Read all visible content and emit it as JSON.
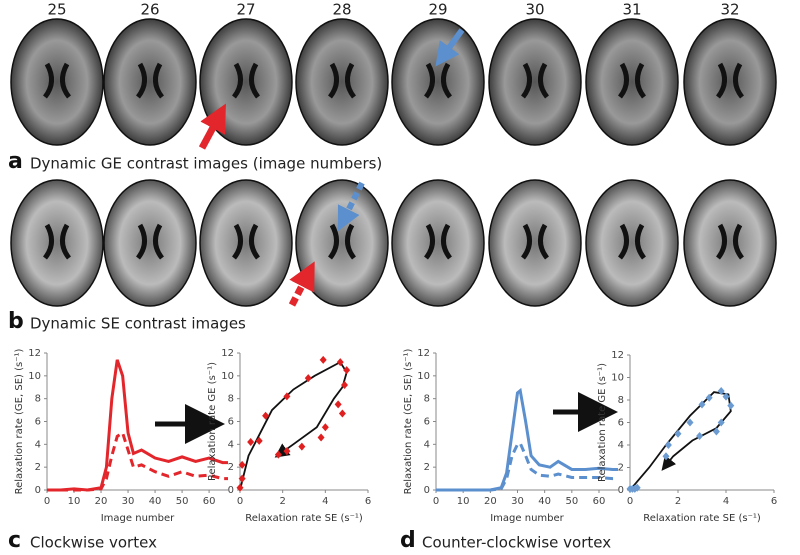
{
  "image_numbers": [
    "25",
    "26",
    "27",
    "28",
    "29",
    "30",
    "31",
    "32"
  ],
  "panels": [
    {
      "letter": "a",
      "caption": "Dynamic GE contrast images (image numbers)"
    },
    {
      "letter": "b",
      "caption": "Dynamic SE contrast images"
    },
    {
      "letter": "c",
      "caption": "Clockwise vortex"
    },
    {
      "letter": "d",
      "caption": "Counter-clockwise vortex"
    }
  ],
  "chart_data": [
    {
      "type": "line",
      "xlabel": "Image number",
      "ylabel": "Relaxation rate (GE, SE) (s⁻¹)",
      "xlim": [
        0,
        67
      ],
      "xticks": [
        0,
        10,
        20,
        30,
        40,
        50,
        60
      ],
      "ylim": [
        0,
        12
      ],
      "yticks": [
        0,
        2,
        4,
        6,
        8,
        10,
        12
      ],
      "x": [
        0,
        5,
        10,
        15,
        20,
        22,
        24,
        26,
        28,
        30,
        32,
        35,
        40,
        45,
        50,
        55,
        60,
        65,
        67
      ],
      "series": [
        {
          "color": "#e3262b",
          "dash": false,
          "values": [
            0,
            0,
            0.1,
            0,
            0.2,
            2,
            8,
            11.4,
            10,
            5,
            3.2,
            3.5,
            2.8,
            2.5,
            2.9,
            2.5,
            2.8,
            2.4,
            2.4
          ]
        },
        {
          "color": "#e3262b",
          "dash": true,
          "values": [
            0,
            0,
            0,
            0,
            0.1,
            1,
            3,
            4.7,
            5,
            3.5,
            2,
            2.2,
            1.6,
            1.2,
            1.6,
            1.2,
            1.3,
            1,
            1
          ]
        }
      ]
    },
    {
      "type": "scatter",
      "xlabel": "Relaxation rate SE (s⁻¹)",
      "ylabel": "Relaxation rate GE (s⁻¹)",
      "xlim": [
        0,
        6
      ],
      "xticks": [
        0,
        2,
        4,
        6
      ],
      "ylim": [
        0,
        12
      ],
      "yticks": [
        0,
        2,
        4,
        6,
        8,
        10,
        12
      ],
      "color": "#e02020",
      "x": [
        0,
        0.1,
        0.1,
        0.5,
        0.9,
        1.2,
        2.2,
        3.2,
        3.9,
        4.7,
        5,
        4.9,
        4.6,
        4.8,
        4,
        3.8,
        2.9,
        2.2,
        1.8
      ],
      "y": [
        0.2,
        1,
        2.2,
        4.2,
        4.3,
        6.5,
        8.2,
        9.8,
        11.4,
        11.2,
        10.5,
        9.2,
        7.5,
        6.7,
        5.5,
        4.6,
        3.8,
        3.4,
        3.1
      ],
      "curve": {
        "color": "#111111",
        "x": [
          0,
          0.4,
          1.5,
          2.5,
          3.5,
          4.7,
          5,
          4.8,
          4.4,
          3.6,
          2.5,
          1.9
        ],
        "y": [
          0,
          3,
          7,
          8.8,
          10,
          11.2,
          10.3,
          9,
          8,
          5.5,
          4,
          3.2
        ]
      }
    },
    {
      "type": "line",
      "xlabel": "Image number",
      "ylabel": "Relaxation rate (GE, SE) (s⁻¹)",
      "xlim": [
        0,
        67
      ],
      "xticks": [
        0,
        10,
        20,
        30,
        40,
        50,
        60
      ],
      "ylim": [
        0,
        12
      ],
      "yticks": [
        0,
        2,
        4,
        6,
        8,
        10,
        12
      ],
      "x": [
        0,
        5,
        10,
        15,
        20,
        24,
        26,
        28,
        30,
        31,
        33,
        35,
        38,
        42,
        45,
        50,
        55,
        60,
        65,
        67
      ],
      "series": [
        {
          "color": "#5b8fce",
          "dash": false,
          "values": [
            0,
            0,
            0,
            0,
            0,
            0.2,
            1.5,
            5,
            8.5,
            8.7,
            6,
            3,
            2.2,
            2,
            2.5,
            1.8,
            1.8,
            1.9,
            1.8,
            1.8
          ]
        },
        {
          "color": "#5b8fce",
          "dash": true,
          "values": [
            0,
            0,
            0,
            0,
            0,
            0.1,
            1,
            3,
            4,
            4.1,
            3,
            1.8,
            1.3,
            1.2,
            1.4,
            1.1,
            1.1,
            1.1,
            1,
            1
          ]
        }
      ]
    },
    {
      "type": "scatter",
      "xlabel": "Relaxation rate SE (s⁻¹)",
      "ylabel": "Relaxation rate GE (s⁻¹)",
      "xlim": [
        0,
        6
      ],
      "xticks": [
        0,
        2,
        4,
        6
      ],
      "ylim": [
        0,
        12
      ],
      "yticks": [
        0,
        2,
        4,
        6,
        8,
        10,
        12
      ],
      "color": "#6b9bd1",
      "x": [
        0,
        0.1,
        0.2,
        0.3,
        1.5,
        1.6,
        2,
        2.5,
        3,
        3.3,
        3.8,
        4,
        4.2,
        3.8,
        3.6,
        2.9
      ],
      "y": [
        0.1,
        0.1,
        0.1,
        0.2,
        3,
        4,
        5,
        6,
        7.6,
        8.2,
        8.8,
        8.3,
        7.5,
        6,
        5.2,
        4.8
      ],
      "curve": {
        "color": "#111111",
        "x": [
          0,
          0.8,
          1.5,
          2.5,
          3.5,
          4.1,
          4.2,
          3.6,
          2.6,
          1.8,
          1.5
        ],
        "y": [
          0,
          2,
          4,
          6.6,
          8.7,
          8.5,
          7,
          5.5,
          4.4,
          3,
          2.2
        ]
      }
    }
  ]
}
